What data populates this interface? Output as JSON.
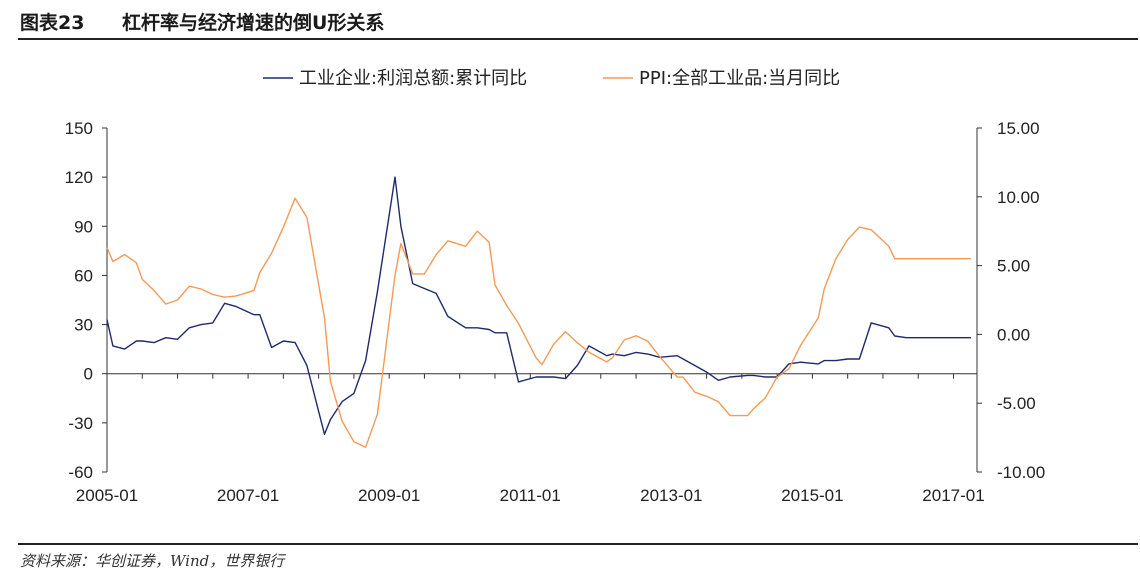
{
  "header": {
    "figure_number": "图表23",
    "title": "杠杆率与经济增速的倒U形关系"
  },
  "source": "资料来源：华创证券，Wind，世界银行",
  "colors": {
    "series1": "#1f2a6b",
    "series2": "#f59a56",
    "axis": "#333333"
  },
  "chart_data": {
    "type": "line",
    "title": "",
    "xlabel": "",
    "ylabel": "",
    "ylabel_right": "",
    "x_ticks": [
      "2005-01",
      "2007-01",
      "2009-01",
      "2011-01",
      "2013-01",
      "2015-01",
      "2017-01"
    ],
    "xlim": [
      "2005-01",
      "2017-05"
    ],
    "y_left": {
      "range": [
        -60,
        150
      ],
      "ticks": [
        "150",
        "120",
        "90",
        "60",
        "30",
        "0",
        "-30",
        "-60"
      ]
    },
    "y_right": {
      "range": [
        -10,
        15
      ],
      "ticks": [
        "15.00",
        "10.00",
        "5.00",
        "0.00",
        "-5.00",
        "-10.00"
      ]
    },
    "legend_position": "top-center",
    "grid": false,
    "series": [
      {
        "name": "工业企业:利润总额:累计同比",
        "axis": "left",
        "color": "#1f2a6b",
        "x": [
          "2005-01",
          "2005-02",
          "2005-04",
          "2005-06",
          "2005-07",
          "2005-09",
          "2005-11",
          "2006-01",
          "2006-03",
          "2006-05",
          "2006-07",
          "2006-09",
          "2006-11",
          "2007-02",
          "2007-03",
          "2007-05",
          "2007-07",
          "2007-09",
          "2007-11",
          "2008-02",
          "2008-03",
          "2008-05",
          "2008-07",
          "2008-09",
          "2008-11",
          "2009-02",
          "2009-03",
          "2009-05",
          "2009-07",
          "2009-09",
          "2009-11",
          "2010-02",
          "2010-04",
          "2010-06",
          "2010-07",
          "2010-09",
          "2010-11",
          "2011-02",
          "2011-03",
          "2011-05",
          "2011-07",
          "2011-09",
          "2011-11",
          "2012-02",
          "2012-03",
          "2012-05",
          "2012-07",
          "2012-09",
          "2012-11",
          "2013-02",
          "2013-03",
          "2013-05",
          "2013-07",
          "2013-09",
          "2013-11",
          "2014-02",
          "2014-03",
          "2014-05",
          "2014-07",
          "2014-09",
          "2014-11",
          "2015-02",
          "2015-03",
          "2015-05",
          "2015-07",
          "2015-09",
          "2015-11",
          "2016-02",
          "2016-03",
          "2016-05",
          "2016-07",
          "2016-09",
          "2016-11",
          "2017-02",
          "2017-03",
          "2017-04"
        ],
        "values": [
          33,
          17,
          15,
          20,
          20,
          19,
          22,
          21,
          28,
          30,
          31,
          43,
          41,
          36,
          36,
          16,
          20,
          19,
          5,
          -37,
          -28,
          -17,
          -12,
          8,
          50,
          120,
          90,
          55,
          52,
          49,
          35,
          28,
          28,
          27,
          25,
          25,
          -5,
          -2,
          -2,
          -2,
          -3,
          5,
          17,
          11,
          12,
          11,
          13,
          12,
          10,
          11,
          9,
          5,
          1,
          -4,
          -2,
          -1,
          -1,
          -2,
          -2,
          6,
          7,
          6,
          8,
          8,
          9,
          9,
          31,
          28,
          23,
          22,
          22,
          22,
          22,
          22,
          22,
          22
        ]
      },
      {
        "name": "PPI:全部工业品:当月同比",
        "axis": "right",
        "color": "#f59a56",
        "x": [
          "2005-01",
          "2005-02",
          "2005-04",
          "2005-06",
          "2005-07",
          "2005-09",
          "2005-11",
          "2006-01",
          "2006-03",
          "2006-05",
          "2006-07",
          "2006-09",
          "2006-11",
          "2007-02",
          "2007-03",
          "2007-05",
          "2007-07",
          "2007-09",
          "2007-11",
          "2008-02",
          "2008-03",
          "2008-05",
          "2008-07",
          "2008-09",
          "2008-11",
          "2009-02",
          "2009-03",
          "2009-05",
          "2009-07",
          "2009-09",
          "2009-11",
          "2010-02",
          "2010-04",
          "2010-06",
          "2010-07",
          "2010-09",
          "2010-11",
          "2011-02",
          "2011-03",
          "2011-05",
          "2011-07",
          "2011-09",
          "2011-11",
          "2012-02",
          "2012-03",
          "2012-05",
          "2012-07",
          "2012-09",
          "2012-11",
          "2013-02",
          "2013-03",
          "2013-05",
          "2013-07",
          "2013-09",
          "2013-11",
          "2014-02",
          "2014-03",
          "2014-05",
          "2014-07",
          "2014-09",
          "2014-11",
          "2015-02",
          "2015-03",
          "2015-05",
          "2015-07",
          "2015-09",
          "2015-11",
          "2016-02",
          "2016-03",
          "2016-05",
          "2016-07",
          "2016-09",
          "2016-11",
          "2017-02",
          "2017-03",
          "2017-04"
        ],
        "values": [
          6.3,
          5.3,
          5.8,
          5.2,
          4.0,
          3.2,
          2.2,
          2.5,
          3.5,
          3.3,
          2.9,
          2.7,
          2.8,
          3.2,
          4.5,
          5.9,
          7.8,
          9.9,
          8.5,
          1.2,
          -3.4,
          -6.3,
          -7.8,
          -8.2,
          -5.8,
          4.3,
          6.6,
          4.4,
          4.4,
          5.8,
          6.8,
          6.4,
          7.5,
          6.7,
          3.6,
          2.1,
          0.8,
          -1.7,
          -2.2,
          -0.7,
          0.2,
          -0.6,
          -1.3,
          -2.0,
          -1.7,
          -0.4,
          -0.1,
          -0.5,
          -1.6,
          -3.1,
          -3.1,
          -4.2,
          -4.5,
          -4.9,
          -5.9,
          -5.9,
          -5.4,
          -4.6,
          -3.1,
          -2.5,
          -0.8,
          1.2,
          3.3,
          5.5,
          6.9,
          7.8,
          7.6,
          6.4,
          5.5,
          5.5,
          5.5,
          5.5,
          5.5,
          5.5,
          5.5,
          5.5
        ]
      }
    ]
  }
}
